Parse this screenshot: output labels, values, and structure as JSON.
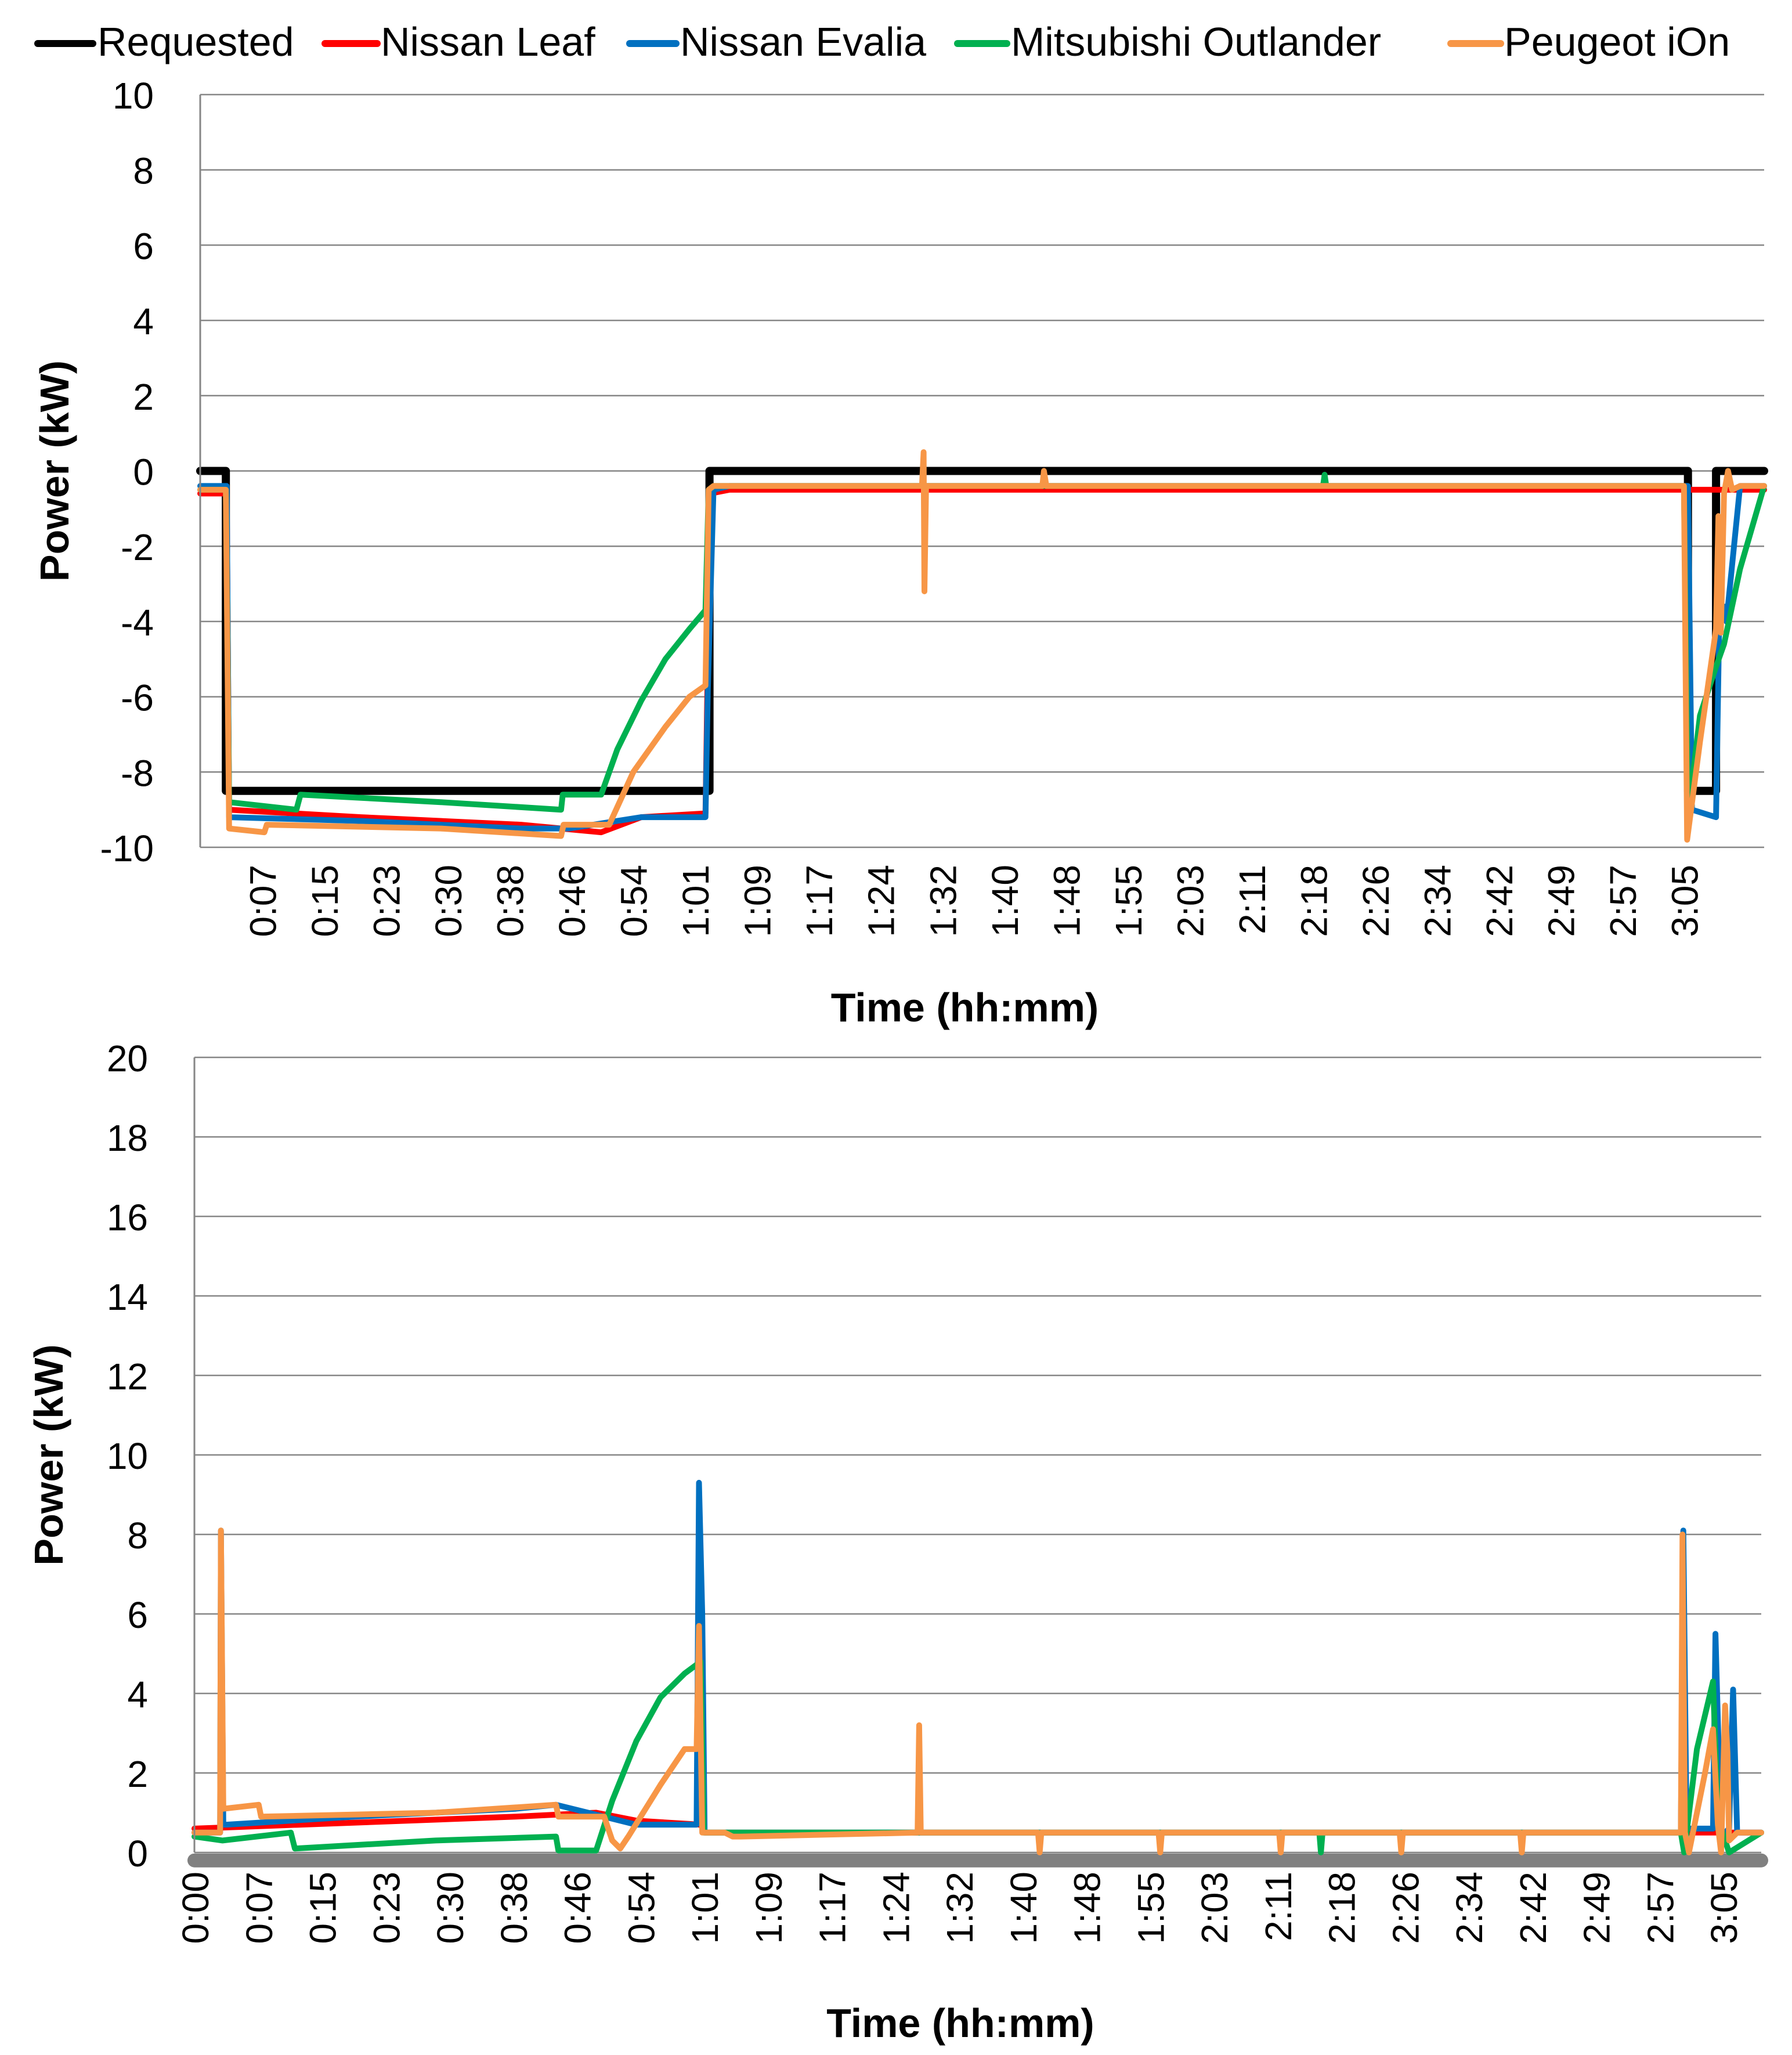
{
  "legend": [
    {
      "name": "Requested",
      "color": "#000000"
    },
    {
      "name": "Nissan Leaf",
      "color": "#ff0000"
    },
    {
      "name": "Nissan Evalia",
      "color": "#0070c0"
    },
    {
      "name": "Mitsubishi Outlander",
      "color": "#00b050"
    },
    {
      "name": "Peugeot iOn",
      "color": "#f79646"
    }
  ],
  "chart_data": [
    {
      "type": "line",
      "title": "",
      "xlabel": "Time (hh:mm)",
      "ylabel": "Power (kW)",
      "xlim": [
        0,
        195
      ],
      "ylim": [
        -10,
        10
      ],
      "yticks": [
        10,
        8,
        6,
        4,
        2,
        0,
        -2,
        -4,
        -6,
        -8,
        -10
      ],
      "xtick_labels": [
        "0:07",
        "0:15",
        "0:23",
        "0:30",
        "0:38",
        "0:46",
        "0:54",
        "1:01",
        "1:09",
        "1:17",
        "1:24",
        "1:32",
        "1:40",
        "1:48",
        "1:55",
        "2:03",
        "2:11",
        "2:18",
        "2:26",
        "2:34",
        "2:42",
        "2:49",
        "2:57",
        "3:05"
      ],
      "grid": true,
      "series": [
        {
          "name": "Requested",
          "color": "#000000",
          "x": [
            0,
            3.2,
            3.2,
            63.5,
            63.5,
            185.5,
            185.5,
            189,
            189,
            195
          ],
          "y": [
            0,
            0,
            -8.5,
            -8.5,
            0,
            0,
            -8.5,
            -8.5,
            0,
            0
          ]
        },
        {
          "name": "Nissan Leaf",
          "color": "#ff0000",
          "x": [
            0,
            3.3,
            3.6,
            20,
            40,
            50,
            55,
            63,
            63.6,
            66,
            195
          ],
          "y": [
            -0.6,
            -0.6,
            -9.0,
            -9.2,
            -9.4,
            -9.6,
            -9.2,
            -9.1,
            -0.6,
            -0.5,
            -0.5
          ]
        },
        {
          "name": "Nissan Evalia",
          "color": "#0070c0",
          "x": [
            0,
            3.0,
            3.3,
            3.6,
            20,
            40,
            46,
            55,
            63,
            63.3,
            64,
            66,
            185,
            185.5,
            186,
            189,
            189.4,
            190,
            190.3,
            192,
            195
          ],
          "y": [
            -0.4,
            -0.4,
            -0.4,
            -9.2,
            -9.3,
            -9.5,
            -9.5,
            -9.2,
            -9.2,
            -5.8,
            -0.5,
            -0.4,
            -0.4,
            -0.4,
            -9.0,
            -9.2,
            -4.0,
            -3.6,
            -4.0,
            -0.4,
            -0.4
          ]
        },
        {
          "name": "Mitsubishi Outlander",
          "color": "#00b050",
          "x": [
            0,
            3.2,
            3.6,
            12,
            12.5,
            30,
            45,
            45.2,
            50,
            52,
            55,
            58,
            61,
            63,
            63.4,
            64,
            66,
            140,
            140.2,
            140.4,
            185,
            185.5,
            187,
            189,
            190,
            192,
            195
          ],
          "y": [
            -0.5,
            -0.5,
            -8.8,
            -9.0,
            -8.6,
            -8.8,
            -9.0,
            -8.6,
            -8.6,
            -7.4,
            -6.1,
            -5.0,
            -4.2,
            -3.7,
            -0.5,
            -0.4,
            -0.4,
            -0.4,
            -0.1,
            -0.4,
            -0.4,
            -9.2,
            -6.5,
            -5.2,
            -4.6,
            -2.6,
            -0.4
          ]
        },
        {
          "name": "Peugeot iOn",
          "color": "#f79646",
          "x": [
            0,
            3.2,
            3.6,
            8,
            8.3,
            30,
            45,
            45.3,
            51,
            54,
            58,
            61,
            63,
            63.4,
            64,
            67,
            90,
            90.2,
            90.3,
            90.5,
            90.7,
            91,
            105,
            105.2,
            105.5,
            185,
            185.4,
            187,
            189,
            189.3,
            189.6,
            190,
            190.5,
            191,
            192,
            195
          ],
          "y": [
            -0.5,
            -0.5,
            -9.5,
            -9.6,
            -9.4,
            -9.5,
            -9.7,
            -9.4,
            -9.4,
            -8.0,
            -6.8,
            -6.0,
            -5.7,
            -0.5,
            -0.4,
            -0.4,
            -0.4,
            0.5,
            -3.2,
            -0.4,
            -0.4,
            -0.4,
            -0.4,
            0.0,
            -0.4,
            -0.4,
            -9.8,
            -7.2,
            -4.2,
            -1.2,
            -4.3,
            -0.6,
            0.0,
            -0.5,
            -0.4,
            -0.4
          ]
        }
      ]
    },
    {
      "type": "line",
      "title": "",
      "xlabel": "Time (hh:mm)",
      "ylabel": "Power (kW)",
      "xlim": [
        0,
        195
      ],
      "ylim": [
        0,
        20
      ],
      "yticks": [
        20,
        18,
        16,
        14,
        12,
        10,
        8,
        6,
        4,
        2,
        0
      ],
      "xtick_labels": [
        "0:00",
        "0:07",
        "0:15",
        "0:23",
        "0:30",
        "0:38",
        "0:46",
        "0:54",
        "1:01",
        "1:09",
        "1:17",
        "1:24",
        "1:32",
        "1:40",
        "1:48",
        "1:55",
        "2:03",
        "2:11",
        "2:18",
        "2:26",
        "2:34",
        "2:42",
        "2:49",
        "2:57",
        "3:05"
      ],
      "grid": true,
      "series": [
        {
          "name": "Requested",
          "color": "#808080",
          "x": [
            0,
            195
          ],
          "y": [
            -0.2,
            -0.2
          ]
        },
        {
          "name": "Nissan Leaf",
          "color": "#ff0000",
          "x": [
            0,
            20,
            40,
            50,
            55,
            63,
            63.6,
            66,
            195
          ],
          "y": [
            0.6,
            0.75,
            0.9,
            1.0,
            0.8,
            0.7,
            0.5,
            0.5,
            0.5
          ]
        },
        {
          "name": "Nissan Evalia",
          "color": "#0070c0",
          "x": [
            0,
            3.2,
            3.3,
            3.6,
            4,
            20,
            40,
            45,
            55,
            62.5,
            62.8,
            63.2,
            63.5,
            66,
            185,
            185.3,
            185.7,
            186,
            189,
            189.3,
            190,
            191,
            191.5,
            192,
            195
          ],
          "y": [
            0.5,
            0.5,
            8.1,
            0.7,
            0.7,
            0.9,
            1.1,
            1.2,
            0.7,
            0.7,
            9.3,
            6.0,
            0.5,
            0.5,
            0.5,
            8.1,
            0.7,
            0.6,
            0.6,
            5.5,
            0.4,
            0.6,
            4.1,
            0.5,
            0.5
          ]
        },
        {
          "name": "Mitsubishi Outlander",
          "color": "#00b050",
          "x": [
            0,
            3.5,
            12,
            12.5,
            30,
            45,
            45.3,
            50,
            52,
            55,
            58,
            61,
            63,
            63.4,
            66,
            140,
            140.2,
            140.4,
            185,
            185.4,
            187,
            189,
            189.6,
            190,
            191,
            195
          ],
          "y": [
            0.4,
            0.3,
            0.5,
            0.1,
            0.3,
            0.4,
            0.05,
            0.05,
            1.3,
            2.8,
            3.9,
            4.5,
            4.8,
            0.5,
            0.5,
            0.5,
            0.0,
            0.5,
            0.5,
            0.0,
            2.6,
            4.3,
            1.0,
            0.6,
            0.0,
            0.5
          ]
        },
        {
          "name": "Peugeot iOn",
          "color": "#f79646",
          "x": [
            0,
            3.2,
            3.3,
            3.6,
            8,
            8.3,
            30,
            45,
            45.3,
            51,
            52,
            53,
            54,
            58,
            61,
            62.5,
            62.8,
            63.2,
            63.5,
            66,
            67,
            68,
            90,
            90.2,
            90.4,
            91,
            105,
            105.2,
            105.4,
            120,
            120.2,
            120.4,
            135,
            135.2,
            135.4,
            150,
            150.2,
            150.4,
            165,
            165.2,
            165.4,
            185,
            185.2,
            185.5,
            186,
            188,
            189,
            189.6,
            190,
            190.5,
            190.8,
            191,
            192,
            195
          ],
          "y": [
            0.5,
            0.5,
            8.1,
            1.1,
            1.2,
            0.9,
            1.0,
            1.2,
            0.9,
            0.9,
            0.3,
            0.1,
            0.4,
            1.7,
            2.6,
            2.6,
            5.7,
            0.5,
            0.5,
            0.5,
            0.4,
            0.4,
            0.5,
            3.2,
            0.5,
            0.5,
            0.5,
            0.0,
            0.5,
            0.5,
            0.0,
            0.5,
            0.5,
            0.0,
            0.5,
            0.5,
            0.0,
            0.5,
            0.5,
            0.0,
            0.5,
            0.5,
            8.0,
            0.5,
            0.0,
            2.0,
            3.1,
            0.7,
            0.0,
            3.7,
            2.5,
            0.3,
            0.5,
            0.5
          ]
        }
      ]
    }
  ]
}
